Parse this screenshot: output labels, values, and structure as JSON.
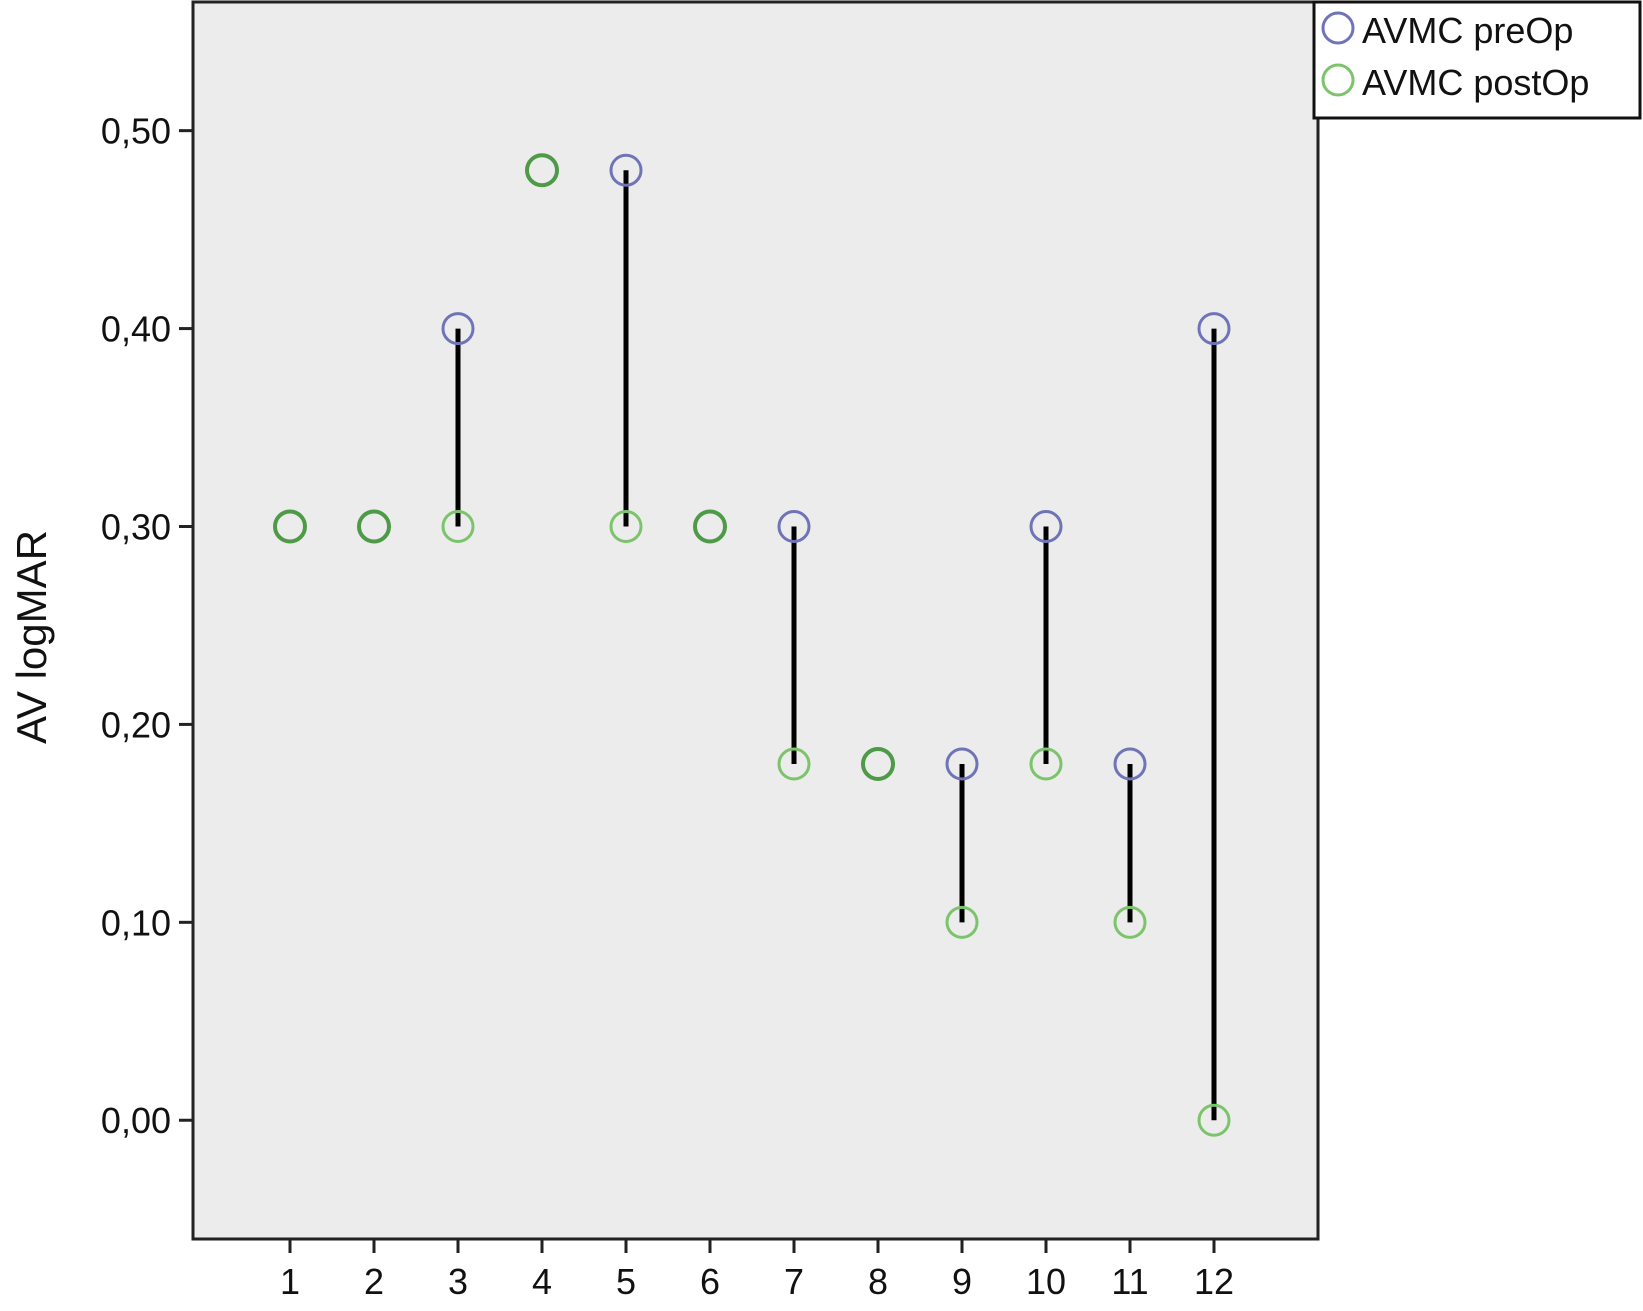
{
  "chart_data": {
    "type": "scatter",
    "title": "",
    "xlabel": "",
    "ylabel": "AV logMAR",
    "categories": [
      "1",
      "2",
      "3",
      "4",
      "5",
      "6",
      "7",
      "8",
      "9",
      "10",
      "11",
      "12"
    ],
    "ylim": [
      -0.06,
      0.565
    ],
    "yticks": [
      0.0,
      0.1,
      0.2,
      0.3,
      0.4,
      0.5
    ],
    "ytick_labels": [
      "0,00",
      "0,10",
      "0,20",
      "0,30",
      "0,40",
      "0,50"
    ],
    "grid": false,
    "legend_position": "top-right",
    "series": [
      {
        "name": "AVMC preOp",
        "color": "#6f74b8",
        "values": [
          0.3,
          0.3,
          0.4,
          0.48,
          0.48,
          0.3,
          0.3,
          0.18,
          0.18,
          0.3,
          0.18,
          0.4
        ]
      },
      {
        "name": "AVMC postOp",
        "color": "#7cc46b",
        "values": [
          0.3,
          0.3,
          0.3,
          0.48,
          0.3,
          0.3,
          0.18,
          0.18,
          0.1,
          0.18,
          0.1,
          0.0
        ]
      }
    ],
    "connector_color": "#000000",
    "overlap_color": "#4e9a47",
    "plot_background": "#ececec"
  }
}
